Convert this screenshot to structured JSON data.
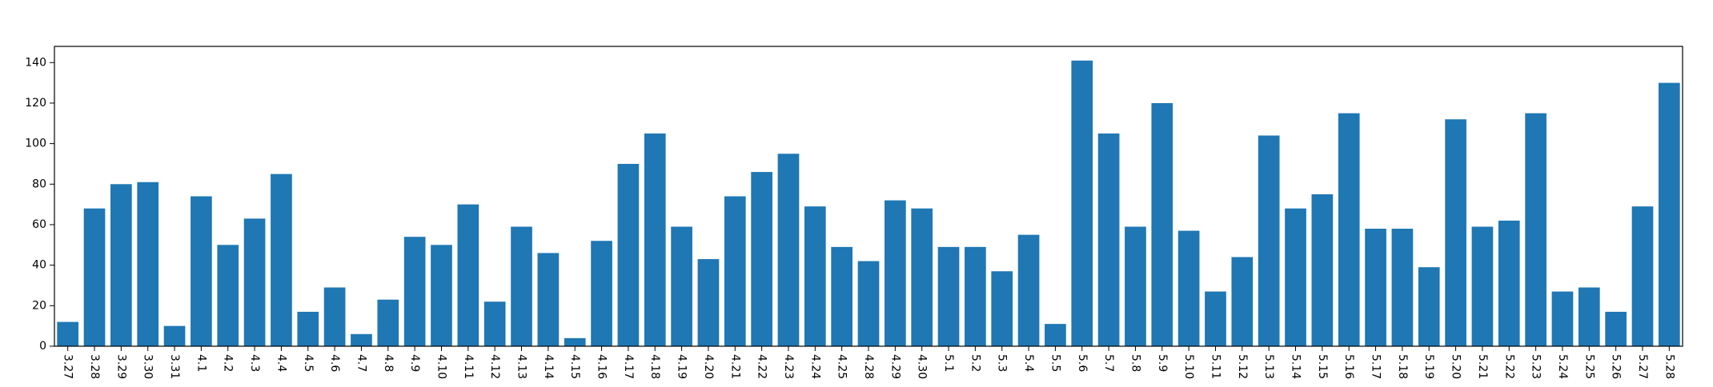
{
  "chart_data": {
    "type": "bar",
    "title": "",
    "xlabel": "",
    "ylabel": "",
    "ylim": [
      0,
      148
    ],
    "yticks": [
      0,
      20,
      40,
      60,
      80,
      100,
      120,
      140
    ],
    "grid": false,
    "bar_color": "#1f77b4",
    "categories": [
      "3.27",
      "3.28",
      "3.29",
      "3.30",
      "3.31",
      "4.1",
      "4.2",
      "4.3",
      "4.4",
      "4.5",
      "4.6",
      "4.7",
      "4.8",
      "4.9",
      "4.10",
      "4.11",
      "4.12",
      "4.13",
      "4.14",
      "4.15",
      "4.16",
      "4.17",
      "4.18",
      "4.19",
      "4.20",
      "4.21",
      "4.22",
      "4.23",
      "4.24",
      "4.25",
      "4.28",
      "4.29",
      "4.30",
      "5.1",
      "5.2",
      "5.3",
      "5.4",
      "5.5",
      "5.6",
      "5.7",
      "5.8",
      "5.9",
      "5.10",
      "5.11",
      "5.12",
      "5.13",
      "5.14",
      "5.15",
      "5.16",
      "5.17",
      "5.18",
      "5.19",
      "5.20",
      "5.21",
      "5.22",
      "5.23",
      "5.24",
      "5.25",
      "5.26",
      "5.27",
      "5.28"
    ],
    "values": [
      12,
      68,
      80,
      81,
      10,
      74,
      50,
      63,
      85,
      17,
      29,
      6,
      23,
      54,
      50,
      70,
      22,
      59,
      46,
      4,
      52,
      90,
      105,
      59,
      43,
      74,
      86,
      95,
      69,
      49,
      42,
      72,
      68,
      49,
      49,
      37,
      55,
      11,
      141,
      105,
      59,
      120,
      57,
      27,
      44,
      104,
      68,
      75,
      115,
      58,
      58,
      39,
      112,
      59,
      62,
      115,
      27,
      29,
      17,
      69,
      130
    ]
  }
}
